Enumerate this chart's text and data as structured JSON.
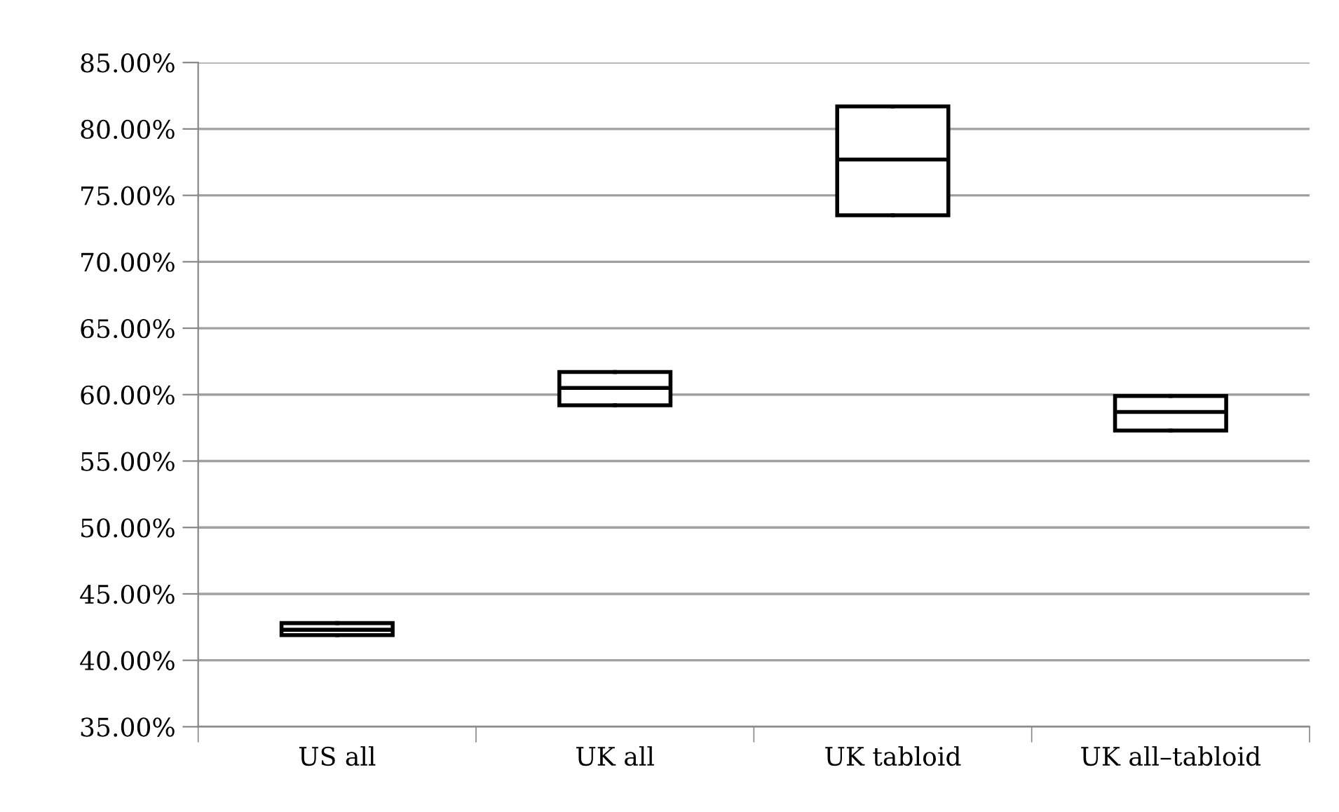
{
  "chart_data": {
    "type": "box",
    "categories": [
      "US all",
      "UK all",
      "UK tabloid",
      "UK all–tabloid"
    ],
    "boxes": [
      {
        "low": 41.9,
        "q1": 41.9,
        "median": 42.3,
        "q3": 42.8,
        "high": 42.8
      },
      {
        "low": 59.2,
        "q1": 59.2,
        "median": 60.5,
        "q3": 61.7,
        "high": 61.7
      },
      {
        "low": 73.5,
        "q1": 73.5,
        "median": 77.7,
        "q3": 81.7,
        "high": 81.7
      },
      {
        "low": 57.3,
        "q1": 57.3,
        "median": 58.7,
        "q3": 59.9,
        "high": 59.9
      }
    ],
    "ylim": [
      35,
      85
    ],
    "yticks": [
      {
        "value": 35,
        "label": "35.00%"
      },
      {
        "value": 40,
        "label": "40.00%"
      },
      {
        "value": 45,
        "label": "45.00%"
      },
      {
        "value": 50,
        "label": "50.00%"
      },
      {
        "value": 55,
        "label": "55.00%"
      },
      {
        "value": 60,
        "label": "60.00%"
      },
      {
        "value": 65,
        "label": "65.00%"
      },
      {
        "value": 70,
        "label": "70.00%"
      },
      {
        "value": 75,
        "label": "75.00%"
      },
      {
        "value": 80,
        "label": "80.00%"
      },
      {
        "value": 85,
        "label": "85.00%"
      }
    ],
    "grid": "y"
  }
}
